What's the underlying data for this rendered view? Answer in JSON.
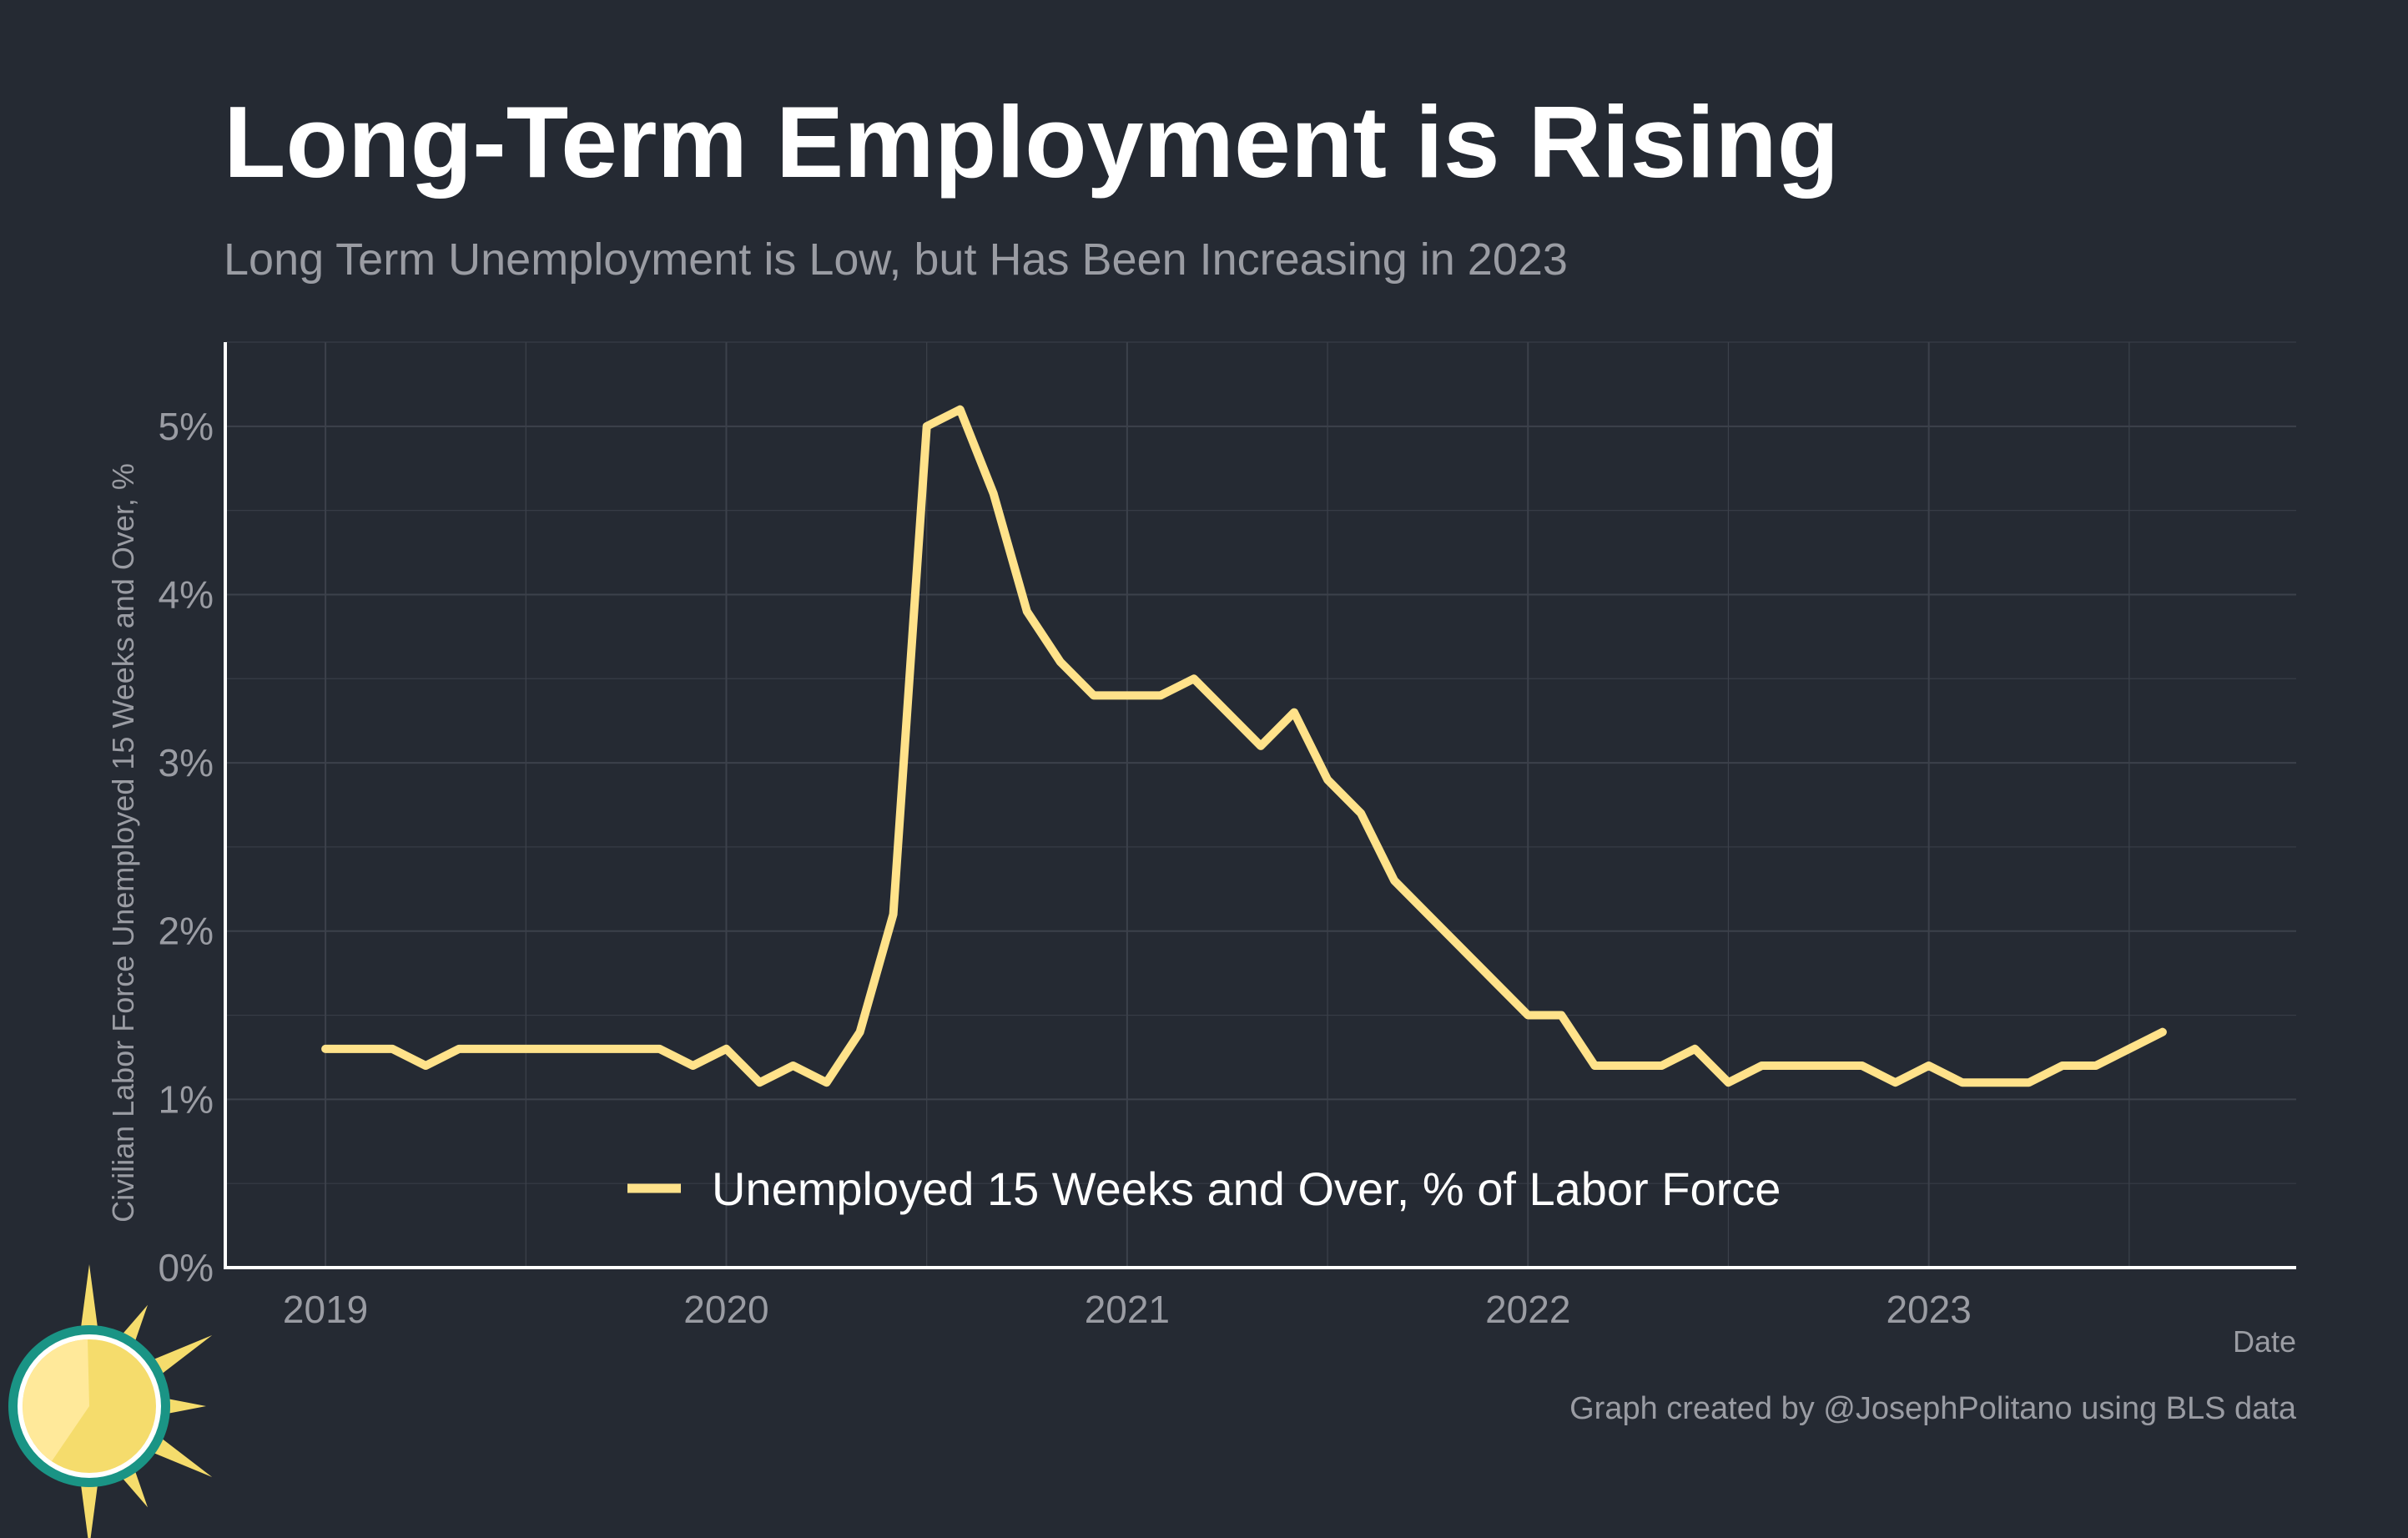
{
  "title": "Long-Term Employment is Rising",
  "subtitle": "Long Term Unemployment is Low, but Has Been Increasing in 2023",
  "credit": "Graph created by @JosephPolitano using BLS data",
  "logo_icon": "sun-logo-icon",
  "colors": {
    "background": "#252a33",
    "line": "#ffe28a",
    "grid": "#3c414b",
    "text_muted": "#9a9ca3"
  },
  "chart_data": {
    "type": "line",
    "title": "Long-Term Employment is Rising",
    "subtitle": "Long Term Unemployment is Low, but Has Been Increasing in 2023",
    "xlabel": "Date",
    "ylabel": "Civilian Labor Force Unemployed 15 Weeks and Over, %",
    "xlim": [
      "2018-10",
      "2023-12"
    ],
    "ylim": [
      0,
      5.5
    ],
    "x_ticks": [
      "2019",
      "2020",
      "2021",
      "2022",
      "2023"
    ],
    "y_ticks": [
      "0%",
      "1%",
      "2%",
      "3%",
      "4%",
      "5%"
    ],
    "grid": true,
    "legend_position": "bottom-center",
    "series": [
      {
        "name": "Unemployed 15 Weeks and Over, % of Labor Force",
        "x": [
          "2019-01",
          "2019-02",
          "2019-03",
          "2019-04",
          "2019-05",
          "2019-06",
          "2019-07",
          "2019-08",
          "2019-09",
          "2019-10",
          "2019-11",
          "2019-12",
          "2020-01",
          "2020-02",
          "2020-03",
          "2020-04",
          "2020-05",
          "2020-06",
          "2020-07",
          "2020-08",
          "2020-09",
          "2020-10",
          "2020-11",
          "2020-12",
          "2021-01",
          "2021-02",
          "2021-03",
          "2021-04",
          "2021-05",
          "2021-06",
          "2021-07",
          "2021-08",
          "2021-09",
          "2021-10",
          "2021-11",
          "2021-12",
          "2022-01",
          "2022-02",
          "2022-03",
          "2022-04",
          "2022-05",
          "2022-06",
          "2022-07",
          "2022-08",
          "2022-09",
          "2022-10",
          "2022-11",
          "2022-12",
          "2023-01",
          "2023-02",
          "2023-03",
          "2023-04",
          "2023-05",
          "2023-06",
          "2023-07",
          "2023-08"
        ],
        "values": [
          1.3,
          1.3,
          1.3,
          1.2,
          1.3,
          1.3,
          1.3,
          1.3,
          1.3,
          1.3,
          1.3,
          1.2,
          1.3,
          1.1,
          1.2,
          1.1,
          1.4,
          2.1,
          5.0,
          5.1,
          4.6,
          3.9,
          3.6,
          3.4,
          3.4,
          3.4,
          3.5,
          3.3,
          3.1,
          3.3,
          2.9,
          2.7,
          2.3,
          2.1,
          1.9,
          1.7,
          1.5,
          1.5,
          1.2,
          1.2,
          1.2,
          1.3,
          1.1,
          1.2,
          1.2,
          1.2,
          1.2,
          1.1,
          1.2,
          1.1,
          1.1,
          1.1,
          1.2,
          1.2,
          1.3,
          1.4
        ]
      }
    ]
  }
}
